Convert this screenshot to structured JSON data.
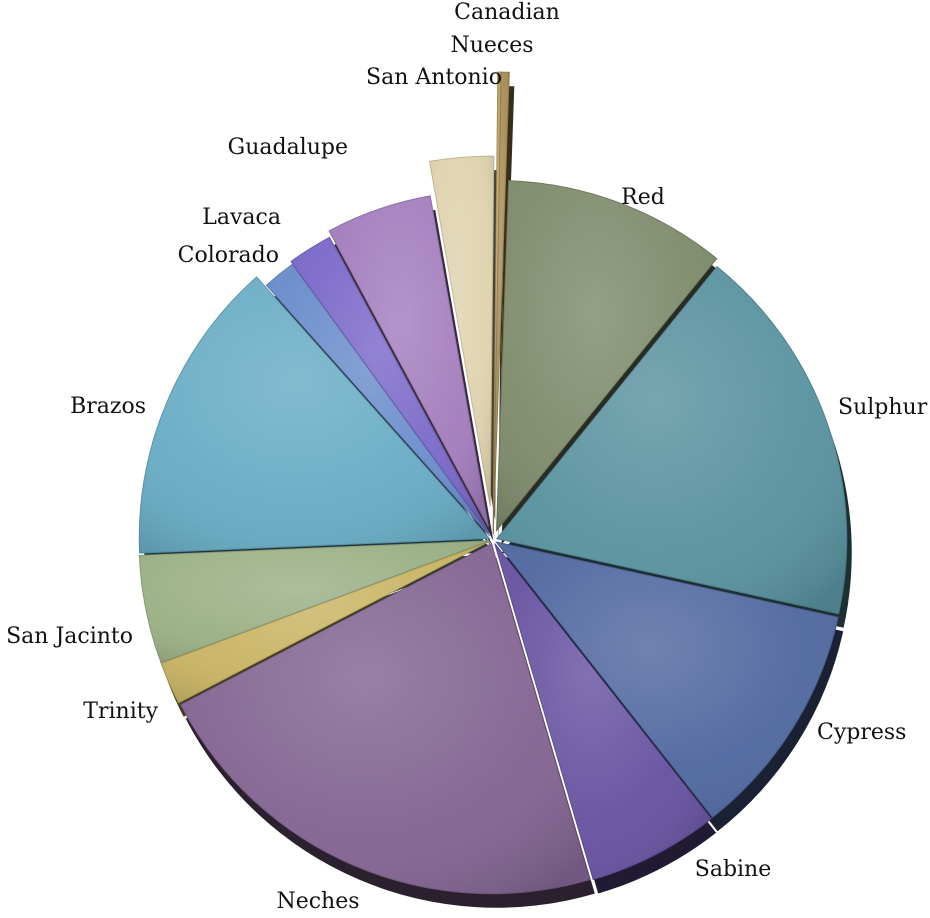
{
  "chart_data": {
    "type": "pie",
    "title": "",
    "start_angle_deg": -88,
    "slices": [
      {
        "label": "Red",
        "value": 10.5,
        "color": "#7D8B6B",
        "explode": 0
      },
      {
        "label": "Sulphur",
        "value": 18.0,
        "color": "#58929F",
        "explode": 0
      },
      {
        "label": "Cypress",
        "value": 11.2,
        "color": "#5068A0",
        "explode": 0
      },
      {
        "label": "Sabine",
        "value": 6.2,
        "color": "#6652A0",
        "explode": 0
      },
      {
        "label": "Neches",
        "value": 22.4,
        "color": "#826491",
        "explode": 0
      },
      {
        "label": "Trinity",
        "value": 2.0,
        "color": "#C9B463",
        "explode": 0
      },
      {
        "label": "San Jacinto",
        "value": 5.1,
        "color": "#9BB085",
        "explode": 0
      },
      {
        "label": "Brazos",
        "value": 14.4,
        "color": "#68ACC4",
        "explode": 0
      },
      {
        "label": "Colorado",
        "value": 1.6,
        "color": "#6A8CCB",
        "explode": 0
      },
      {
        "label": "Lavaca",
        "value": 2.2,
        "color": "#7A68C9",
        "explode": 0
      },
      {
        "label": "Guadalupe",
        "value": 5.2,
        "color": "#A37DBD",
        "explode": 0
      },
      {
        "label": "San Antonio",
        "value": 3.0,
        "color": "#DFD2AE",
        "explode": 30
      },
      {
        "label": "Nueces",
        "value": 0.12,
        "color": "#B8A060",
        "explode": 0
      },
      {
        "label": "Canadian",
        "value": 0.28,
        "color": "#A88C55",
        "explode": 0
      }
    ]
  }
}
